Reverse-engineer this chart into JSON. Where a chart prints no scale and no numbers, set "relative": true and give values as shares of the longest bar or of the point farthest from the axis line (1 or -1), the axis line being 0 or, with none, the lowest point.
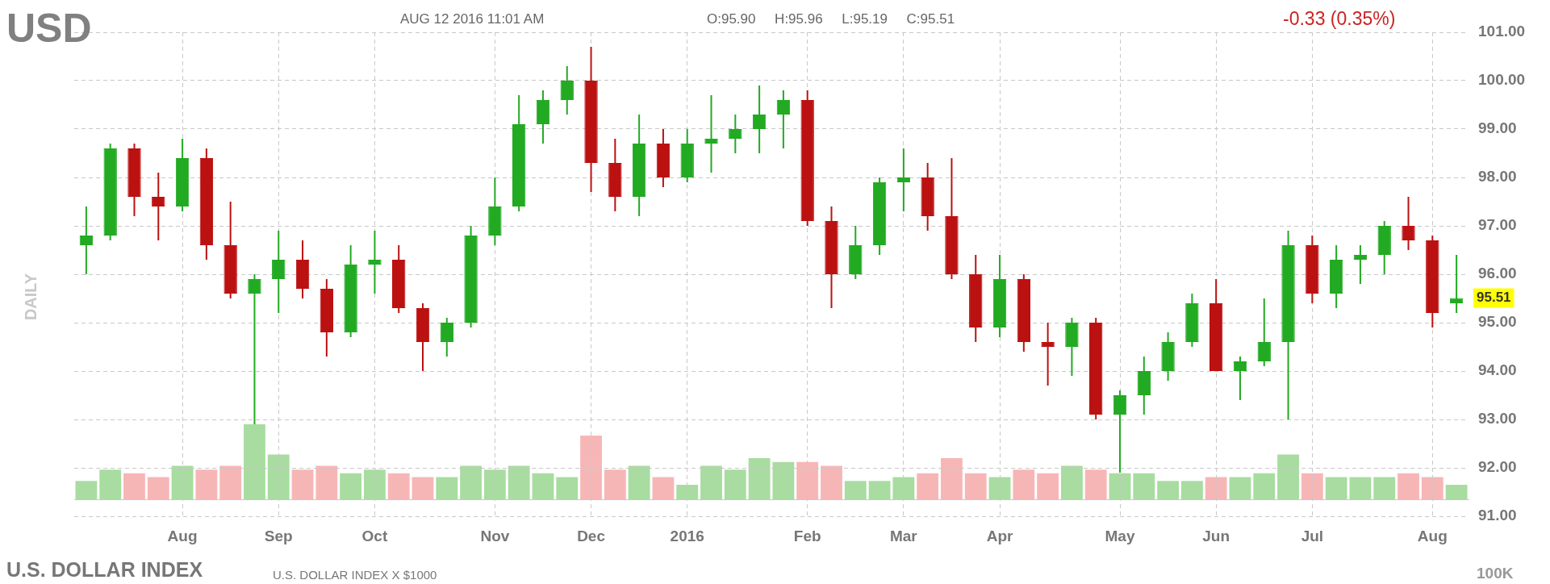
{
  "chart_data": [
    {
      "type": "candlestick",
      "title": "USD",
      "ylabel": "DAILY",
      "annotations": [
        "AUG 12 2016 11:01 AM",
        "O:95.90     H:95.96     L:95.19     C:95.51",
        "-0.33 (0.35%)",
        "U.S. DOLLAR INDEX",
        "U.S. DOLLAR INDEX X $1000",
        "100K",
        "95.51"
      ],
      "categories": [
        null,
        null,
        null,
        null,
        "Aug",
        null,
        null,
        null,
        "Sep",
        null,
        null,
        null,
        "Oct",
        null,
        null,
        null,
        null,
        "Nov",
        null,
        null,
        null,
        "Dec",
        null,
        null,
        null,
        "2016",
        null,
        null,
        null,
        null,
        "Feb",
        null,
        null,
        null,
        "Mar",
        null,
        null,
        null,
        "Apr",
        null,
        null,
        null,
        null,
        "May",
        null,
        null,
        null,
        "Jun",
        null,
        null,
        null,
        "Jul",
        null,
        null,
        null,
        null,
        "Aug",
        null
      ],
      "ohlc": [
        [
          96.6,
          97.4,
          96.0,
          96.8
        ],
        [
          96.8,
          98.7,
          96.7,
          98.6
        ],
        [
          98.6,
          98.7,
          97.2,
          97.6
        ],
        [
          97.6,
          98.1,
          96.7,
          97.4
        ],
        [
          97.4,
          98.8,
          97.3,
          98.4
        ],
        [
          98.4,
          98.6,
          96.3,
          96.6
        ],
        [
          96.6,
          97.5,
          95.5,
          95.6
        ],
        [
          95.6,
          96.0,
          92.9,
          95.9
        ],
        [
          95.9,
          96.9,
          95.2,
          96.3
        ],
        [
          96.3,
          96.7,
          95.5,
          95.7
        ],
        [
          95.7,
          95.9,
          94.3,
          94.8
        ],
        [
          94.8,
          96.6,
          94.7,
          96.2
        ],
        [
          96.2,
          96.9,
          95.6,
          96.3
        ],
        [
          96.3,
          96.6,
          95.2,
          95.3
        ],
        [
          95.3,
          95.4,
          94.0,
          94.6
        ],
        [
          94.6,
          95.1,
          94.3,
          95.0
        ],
        [
          95.0,
          97.0,
          94.9,
          96.8
        ],
        [
          96.8,
          98.0,
          96.6,
          97.4
        ],
        [
          97.4,
          99.7,
          97.3,
          99.1
        ],
        [
          99.1,
          99.8,
          98.7,
          99.6
        ],
        [
          99.6,
          100.3,
          99.3,
          100.0
        ],
        [
          100.0,
          100.7,
          97.7,
          98.3
        ],
        [
          98.3,
          98.8,
          97.3,
          97.6
        ],
        [
          97.6,
          99.3,
          97.2,
          98.7
        ],
        [
          98.7,
          99.0,
          97.8,
          98.0
        ],
        [
          98.0,
          99.0,
          97.9,
          98.7
        ],
        [
          98.7,
          99.7,
          98.1,
          98.8
        ],
        [
          98.8,
          99.3,
          98.5,
          99.0
        ],
        [
          99.0,
          99.9,
          98.5,
          99.3
        ],
        [
          99.3,
          99.8,
          98.6,
          99.6
        ],
        [
          99.6,
          99.8,
          97.0,
          97.1
        ],
        [
          97.1,
          97.4,
          95.3,
          96.0
        ],
        [
          96.0,
          97.0,
          95.9,
          96.6
        ],
        [
          96.6,
          98.0,
          96.4,
          97.9
        ],
        [
          97.9,
          98.6,
          97.3,
          98.0
        ],
        [
          98.0,
          98.3,
          96.9,
          97.2
        ],
        [
          97.2,
          98.4,
          95.9,
          96.0
        ],
        [
          96.0,
          96.4,
          94.6,
          94.9
        ],
        [
          94.9,
          96.4,
          94.7,
          95.9
        ],
        [
          95.9,
          96.0,
          94.4,
          94.6
        ],
        [
          94.6,
          95.0,
          93.7,
          94.5
        ],
        [
          94.5,
          95.1,
          93.9,
          95.0
        ],
        [
          95.0,
          95.1,
          93.0,
          93.1
        ],
        [
          93.1,
          93.6,
          91.9,
          93.5
        ],
        [
          93.5,
          94.3,
          93.1,
          94.0
        ],
        [
          94.0,
          94.8,
          93.8,
          94.6
        ],
        [
          94.6,
          95.6,
          94.5,
          95.4
        ],
        [
          95.4,
          95.9,
          94.0,
          94.0
        ],
        [
          94.0,
          94.3,
          93.4,
          94.2
        ],
        [
          94.2,
          95.5,
          94.1,
          94.6
        ],
        [
          94.6,
          96.9,
          93.0,
          96.6
        ],
        [
          96.6,
          96.8,
          95.4,
          95.6
        ],
        [
          95.6,
          96.6,
          95.3,
          96.3
        ],
        [
          96.3,
          96.6,
          95.8,
          96.4
        ],
        [
          96.4,
          97.1,
          96.0,
          97.0
        ],
        [
          97.0,
          97.6,
          96.5,
          96.7
        ],
        [
          96.7,
          96.8,
          94.9,
          95.2
        ],
        [
          95.4,
          96.4,
          95.2,
          95.51
        ]
      ],
      "colors": [
        "#22aa22",
        "#22aa22",
        "#bb1111",
        "#bb1111",
        "#22aa22",
        "#bb1111",
        "#bb1111",
        "#22aa22",
        "#22aa22",
        "#bb1111",
        "#bb1111",
        "#22aa22",
        "#22aa22",
        "#bb1111",
        "#bb1111",
        "#22aa22",
        "#22aa22",
        "#22aa22",
        "#22aa22",
        "#22aa22",
        "#22aa22",
        "#bb1111",
        "#bb1111",
        "#22aa22",
        "#bb1111",
        "#22aa22",
        "#22aa22",
        "#22aa22",
        "#22aa22",
        "#22aa22",
        "#bb1111",
        "#bb1111",
        "#22aa22",
        "#22aa22",
        "#22aa22",
        "#bb1111",
        "#bb1111",
        "#bb1111",
        "#22aa22",
        "#bb1111",
        "#bb1111",
        "#22aa22",
        "#bb1111",
        "#22aa22",
        "#22aa22",
        "#22aa22",
        "#22aa22",
        "#bb1111",
        "#22aa22",
        "#22aa22",
        "#22aa22",
        "#bb1111",
        "#22aa22",
        "#22aa22",
        "#22aa22",
        "#bb1111",
        "#bb1111",
        "#22aa22"
      ],
      "ylim": [
        91,
        101
      ],
      "yticks": [
        {
          "value": 91,
          "label": "91.00"
        },
        {
          "value": 92,
          "label": "92.00"
        },
        {
          "value": 93,
          "label": "93.00"
        },
        {
          "value": 94,
          "label": "94.00"
        },
        {
          "value": 95,
          "label": "95.00"
        },
        {
          "value": 96,
          "label": "96.00"
        },
        {
          "value": 97,
          "label": "97.00"
        },
        {
          "value": 98,
          "label": "98.00"
        },
        {
          "value": 99,
          "label": "99.00"
        },
        {
          "value": 100,
          "label": "100.00"
        },
        {
          "value": 101,
          "label": "101.00"
        }
      ],
      "grid": true
    },
    {
      "type": "bar",
      "relative": true,
      "categories": [
        null,
        null,
        null,
        null,
        null,
        null,
        null,
        null,
        null,
        null,
        null,
        null,
        null,
        null,
        null,
        null,
        null,
        null,
        null,
        null,
        null,
        null,
        null,
        null,
        null,
        null,
        null,
        null,
        null,
        null,
        null,
        null,
        null,
        null,
        null,
        null,
        null,
        null,
        null,
        null,
        null,
        null,
        null,
        null,
        null,
        null,
        null,
        null,
        null,
        null,
        null,
        null,
        null,
        null,
        null,
        null,
        null,
        null
      ],
      "values": [
        0.25,
        0.4,
        0.35,
        0.3,
        0.45,
        0.4,
        0.45,
        1,
        0.6,
        0.4,
        0.45,
        0.35,
        0.4,
        0.35,
        0.3,
        0.3,
        0.45,
        0.4,
        0.45,
        0.35,
        0.3,
        0.85,
        0.4,
        0.45,
        0.3,
        0.2,
        0.45,
        0.4,
        0.55,
        0.5,
        0.5,
        0.45,
        0.25,
        0.25,
        0.3,
        0.35,
        0.55,
        0.35,
        0.3,
        0.4,
        0.35,
        0.45,
        0.4,
        0.35,
        0.35,
        0.25,
        0.25,
        0.3,
        0.3,
        0.35,
        0.6,
        0.35,
        0.3,
        0.3,
        0.3,
        0.35,
        0.3,
        0.2
      ],
      "colors": [
        "#a8dca0",
        "#a8dca0",
        "#f7b6b6",
        "#f7b6b6",
        "#a8dca0",
        "#f7b6b6",
        "#f7b6b6",
        "#a8dca0",
        "#a8dca0",
        "#f7b6b6",
        "#f7b6b6",
        "#a8dca0",
        "#a8dca0",
        "#f7b6b6",
        "#f7b6b6",
        "#a8dca0",
        "#a8dca0",
        "#a8dca0",
        "#a8dca0",
        "#a8dca0",
        "#a8dca0",
        "#f7b6b6",
        "#f7b6b6",
        "#a8dca0",
        "#f7b6b6",
        "#a8dca0",
        "#a8dca0",
        "#a8dca0",
        "#a8dca0",
        "#a8dca0",
        "#f7b6b6",
        "#f7b6b6",
        "#a8dca0",
        "#a8dca0",
        "#a8dca0",
        "#f7b6b6",
        "#f7b6b6",
        "#f7b6b6",
        "#a8dca0",
        "#f7b6b6",
        "#f7b6b6",
        "#a8dca0",
        "#f7b6b6",
        "#a8dca0",
        "#a8dca0",
        "#a8dca0",
        "#a8dca0",
        "#f7b6b6",
        "#a8dca0",
        "#a8dca0",
        "#a8dca0",
        "#f7b6b6",
        "#a8dca0",
        "#a8dca0",
        "#a8dca0",
        "#f7b6b6",
        "#f7b6b6",
        "#a8dca0"
      ]
    }
  ]
}
